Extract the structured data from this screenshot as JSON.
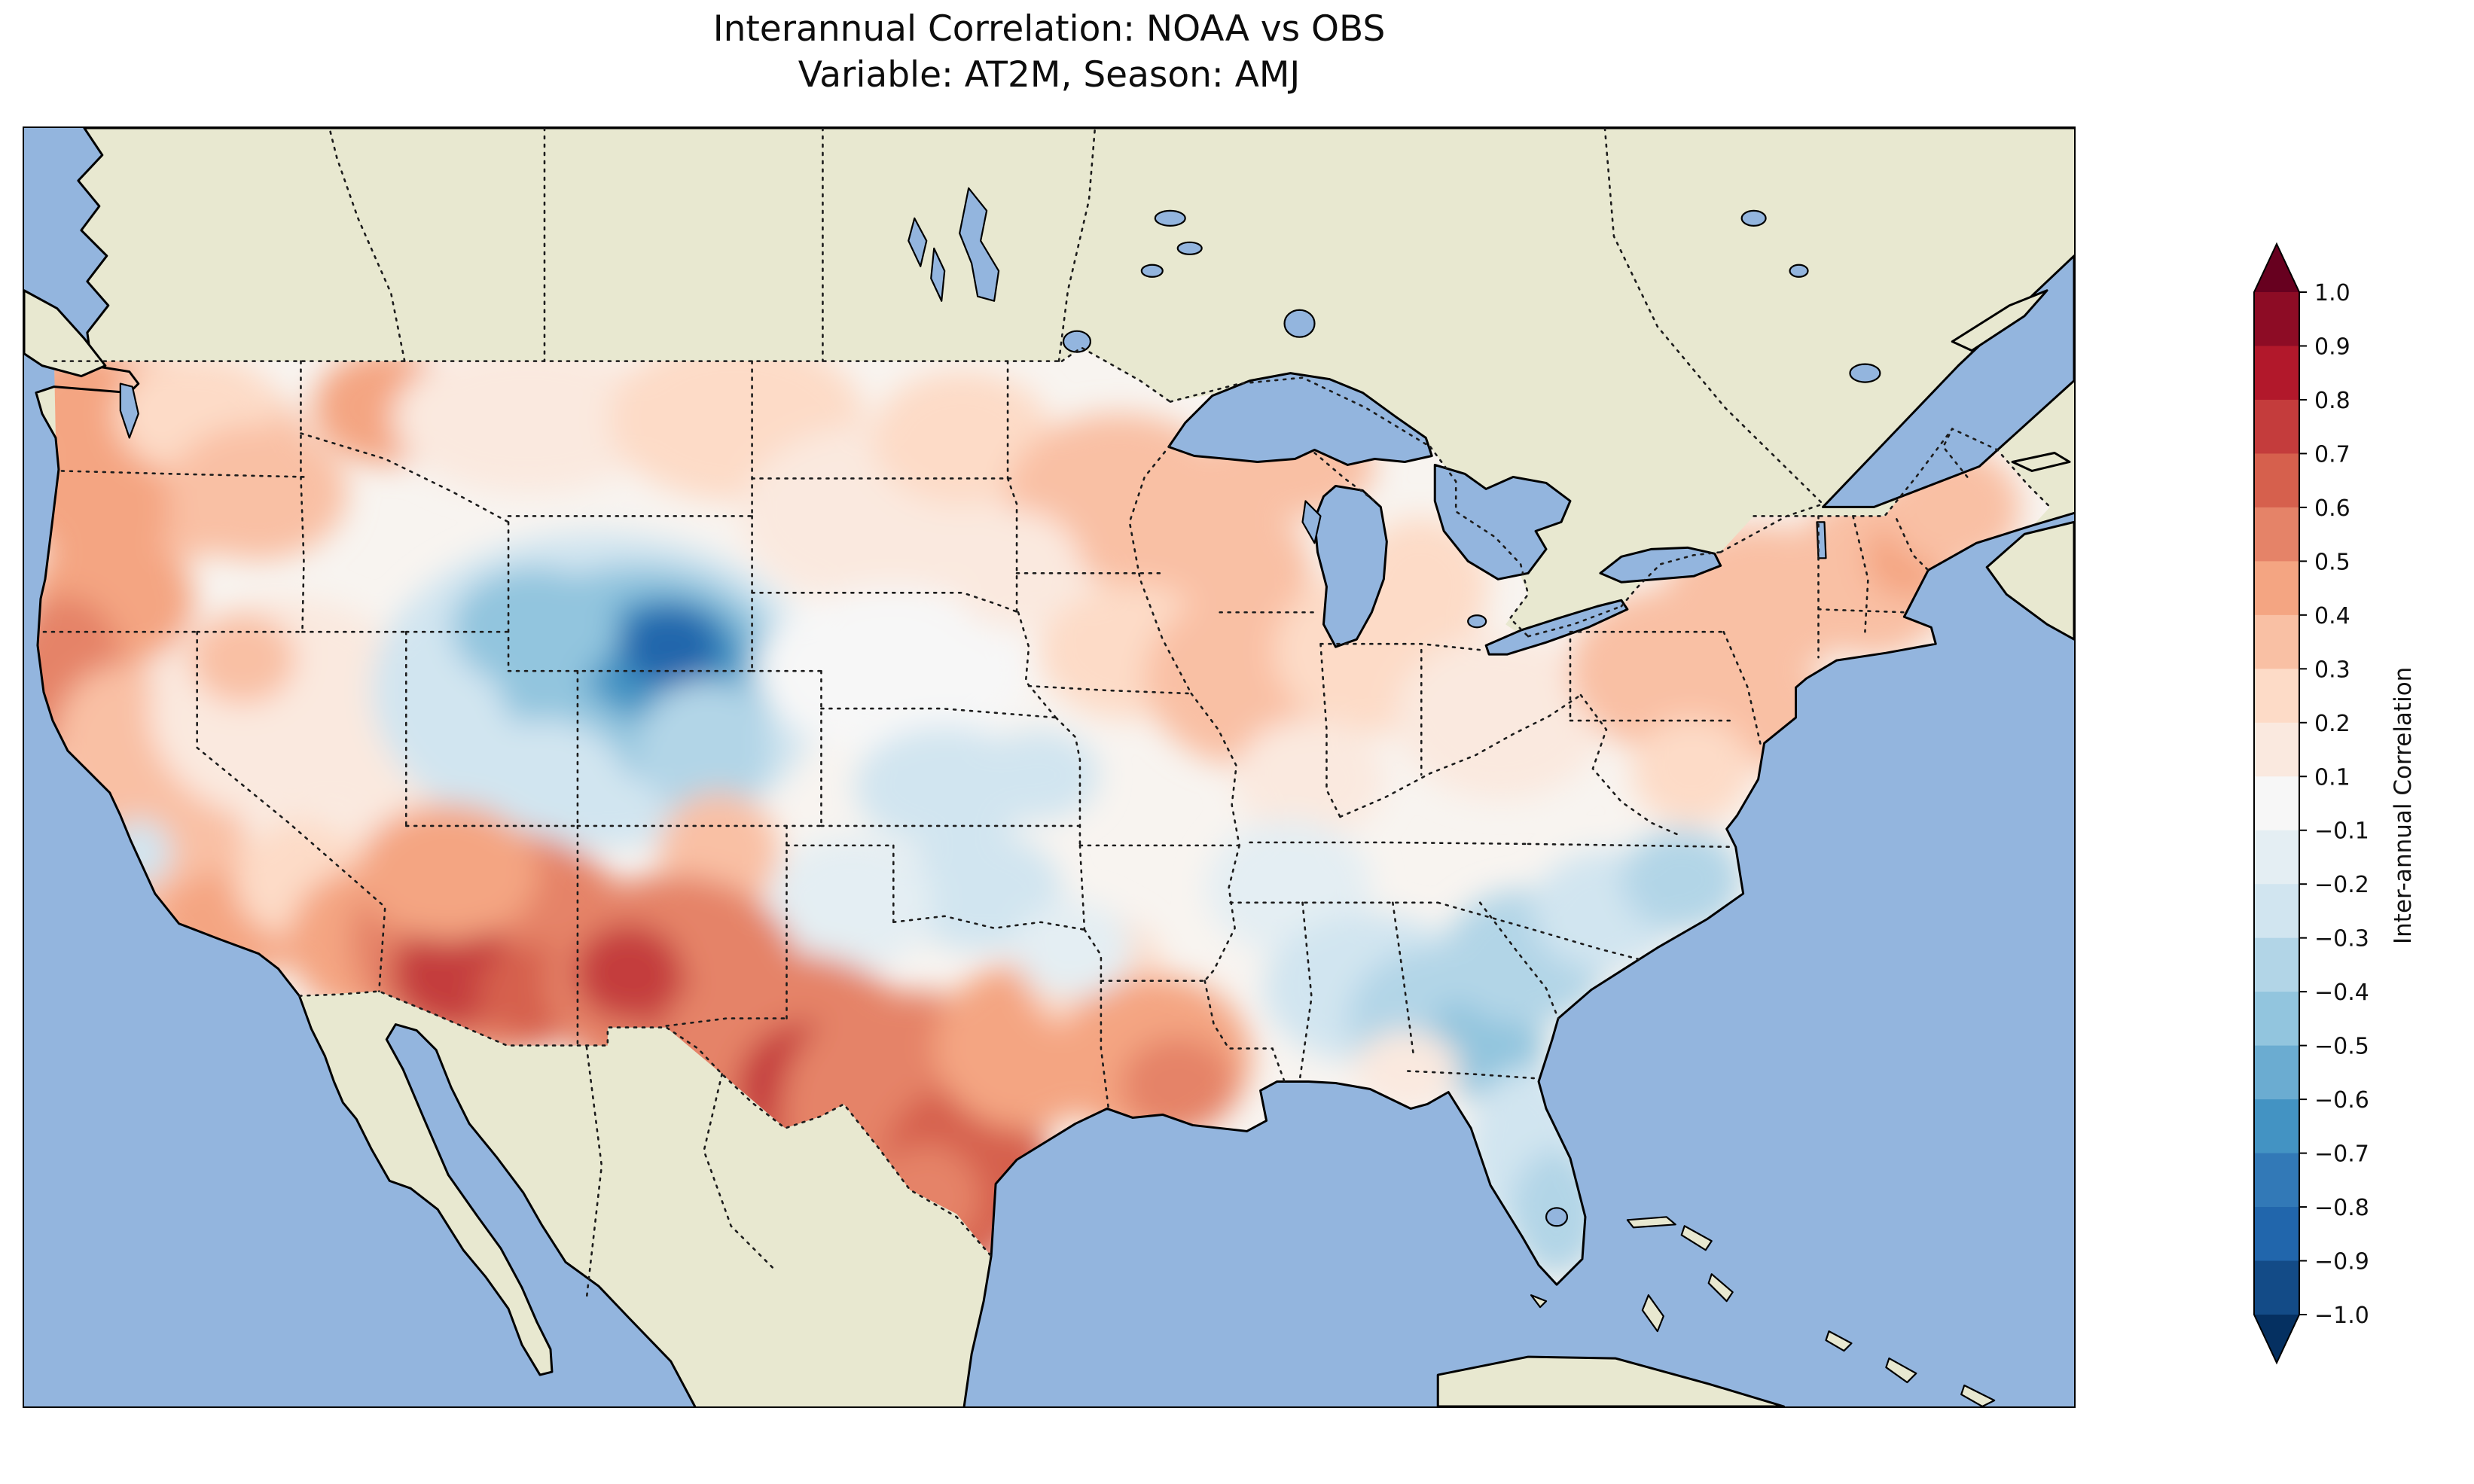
{
  "figure": {
    "title": "Interannual Correlation: NOAA vs OBS",
    "subtitle": "Variable: AT2M, Season: AMJ"
  },
  "colorbar": {
    "label": "Inter-annual Correlation",
    "ticks": [
      "1.0",
      "0.9",
      "0.8",
      "0.7",
      "0.6",
      "0.5",
      "0.4",
      "0.3",
      "0.2",
      "0.1",
      "−0.1",
      "−0.2",
      "−0.3",
      "−0.4",
      "−0.5",
      "−0.6",
      "−0.7",
      "−0.8",
      "−0.9",
      "−1.0"
    ],
    "band_colors": [
      "#8d0c25",
      "#b2182b",
      "#c43c3c",
      "#d6604d",
      "#e58368",
      "#f4a582",
      "#f9c0a4",
      "#fddbc7",
      "#fae9df",
      "#f7f7f7",
      "#e4eef3",
      "#d1e5f0",
      "#b2d5e7",
      "#92c5de",
      "#6bacd1",
      "#4393c3",
      "#3279b7",
      "#2166ac",
      "#134b87"
    ],
    "extend_over_color": "#67001f",
    "extend_under_color": "#053061"
  },
  "map": {
    "extent": {
      "lon": [
        -125,
        -66
      ],
      "lat": [
        22,
        55
      ]
    },
    "colors": {
      "ocean": "#93b5de",
      "land": "#e8e8d0",
      "field_base": "#f8f4f0",
      "coastline": "#000000",
      "borders": "#1c1c1c"
    },
    "field_blobs": [
      [
        -121.5,
        46.5,
        110,
        70,
        0.3
      ],
      [
        -123.3,
        47.8,
        45,
        40,
        0.45
      ],
      [
        -122.8,
        45.4,
        50,
        45,
        0.45
      ],
      [
        -120.0,
        47.6,
        55,
        40,
        0.2
      ],
      [
        -118.3,
        45.6,
        60,
        45,
        0.3
      ],
      [
        -122.5,
        42.8,
        55,
        45,
        0.4
      ],
      [
        -123.8,
        40.8,
        40,
        55,
        0.55
      ],
      [
        -122.2,
        39.0,
        45,
        55,
        0.35
      ],
      [
        -120.8,
        36.8,
        50,
        65,
        0.35
      ],
      [
        -121.7,
        36.3,
        22,
        22,
        -0.2
      ],
      [
        -118.8,
        34.5,
        55,
        35,
        0.4
      ],
      [
        -117.0,
        35.6,
        45,
        40,
        0.25
      ],
      [
        -115.0,
        34.0,
        55,
        50,
        0.5
      ],
      [
        -117.5,
        40.0,
        90,
        75,
        0.1
      ],
      [
        -118.7,
        41.3,
        35,
        30,
        0.35
      ],
      [
        -113.5,
        38.0,
        60,
        55,
        0.15
      ],
      [
        -111.8,
        40.2,
        45,
        45,
        0.2
      ],
      [
        -108.5,
        40.5,
        150,
        105,
        -0.25
      ],
      [
        -107.3,
        41.0,
        95,
        70,
        -0.45
      ],
      [
        -106.6,
        41.3,
        55,
        42,
        -0.65
      ],
      [
        -106.4,
        41.6,
        32,
        26,
        -0.85
      ],
      [
        -110.3,
        42.1,
        55,
        40,
        -0.4
      ],
      [
        -105.4,
        39.0,
        45,
        45,
        -0.3
      ],
      [
        -110.0,
        38.0,
        55,
        45,
        -0.2
      ],
      [
        -114.5,
        47.8,
        50,
        38,
        0.4
      ],
      [
        -110.5,
        47.5,
        90,
        50,
        0.15
      ],
      [
        -104.5,
        47.5,
        85,
        55,
        0.25
      ],
      [
        -100.5,
        45.0,
        90,
        60,
        0.15
      ],
      [
        -98.0,
        47.0,
        60,
        45,
        0.25
      ],
      [
        -100.0,
        41.0,
        90,
        55,
        0.05
      ],
      [
        -98.5,
        38.0,
        60,
        40,
        -0.2
      ],
      [
        -95.8,
        38.3,
        40,
        30,
        -0.2
      ],
      [
        -97.5,
        35.3,
        55,
        40,
        -0.2
      ],
      [
        -101.2,
        35.0,
        55,
        45,
        -0.1
      ],
      [
        -105.0,
        36.3,
        40,
        40,
        0.35
      ],
      [
        -111.5,
        34.0,
        95,
        75,
        0.55
      ],
      [
        -112.6,
        33.2,
        42,
        36,
        0.78
      ],
      [
        -110.0,
        32.7,
        45,
        32,
        0.7
      ],
      [
        -112.8,
        35.8,
        60,
        45,
        0.45
      ],
      [
        -106.3,
        33.0,
        85,
        70,
        0.6
      ],
      [
        -107.6,
        33.2,
        36,
        32,
        0.8
      ],
      [
        -105.2,
        31.6,
        42,
        38,
        0.8
      ],
      [
        -103.0,
        31.0,
        90,
        70,
        0.6
      ],
      [
        -102.3,
        30.2,
        50,
        45,
        0.75
      ],
      [
        -101.5,
        29.3,
        45,
        35,
        0.7
      ],
      [
        -99.5,
        29.8,
        85,
        75,
        0.55
      ],
      [
        -97.9,
        28.2,
        55,
        55,
        0.65
      ],
      [
        -98.2,
        27.0,
        40,
        40,
        0.7
      ],
      [
        -99.0,
        27.4,
        35,
        35,
        0.6
      ],
      [
        -96.2,
        31.3,
        60,
        55,
        0.45
      ],
      [
        -94.2,
        33.2,
        45,
        40,
        0.2
      ],
      [
        -92.5,
        31.0,
        65,
        55,
        0.45
      ],
      [
        -91.8,
        30.3,
        38,
        32,
        0.55
      ],
      [
        -93.5,
        45.5,
        75,
        55,
        0.35
      ],
      [
        -91.0,
        43.5,
        70,
        55,
        0.3
      ],
      [
        -93.2,
        41.5,
        60,
        45,
        0.25
      ],
      [
        -89.5,
        40.8,
        75,
        60,
        0.3
      ],
      [
        -86.0,
        41.5,
        70,
        55,
        0.25
      ],
      [
        -84.8,
        43.2,
        45,
        45,
        0.25
      ],
      [
        -96.5,
        43.6,
        45,
        40,
        0.15
      ],
      [
        -88.5,
        46.3,
        55,
        35,
        0.35
      ],
      [
        -82.5,
        39.8,
        70,
        55,
        0.15
      ],
      [
        -88.0,
        38.2,
        50,
        40,
        0.1
      ],
      [
        -77.5,
        41.0,
        70,
        55,
        0.3
      ],
      [
        -75.0,
        42.8,
        65,
        50,
        0.3
      ],
      [
        -71.8,
        43.5,
        55,
        55,
        0.35
      ],
      [
        -70.8,
        43.9,
        28,
        26,
        0.5
      ],
      [
        -74.5,
        39.8,
        38,
        35,
        0.35
      ],
      [
        -77.0,
        38.4,
        40,
        35,
        0.25
      ],
      [
        -69.5,
        45.2,
        45,
        40,
        0.3
      ],
      [
        -88.6,
        35.4,
        55,
        45,
        -0.1
      ],
      [
        -94.8,
        33.8,
        40,
        32,
        -0.1
      ],
      [
        -86.3,
        32.8,
        70,
        50,
        -0.25
      ],
      [
        -84.3,
        32.0,
        60,
        48,
        -0.3
      ],
      [
        -83.0,
        31.3,
        40,
        34,
        -0.45
      ],
      [
        -81.8,
        33.6,
        55,
        45,
        -0.3
      ],
      [
        -79.5,
        34.8,
        48,
        40,
        -0.25
      ],
      [
        -77.3,
        35.6,
        40,
        34,
        -0.3
      ],
      [
        -81.8,
        28.6,
        38,
        55,
        -0.25
      ],
      [
        -80.9,
        27.0,
        30,
        42,
        -0.35
      ],
      [
        -85.2,
        30.7,
        35,
        26,
        0.15
      ]
    ]
  },
  "chart_data": {
    "type": "heatmap",
    "title": "Interannual Correlation: NOAA vs OBS",
    "subtitle": "Variable: AT2M, Season: AMJ",
    "variable": "AT2M",
    "season": "AMJ",
    "datasets_compared": [
      "NOAA",
      "OBS"
    ],
    "colorbar_label": "Inter-annual Correlation",
    "colormap": "RdBu_r (diverging; red = positive correlation, blue = negative correlation)",
    "value_range": [
      -1.0,
      1.0
    ],
    "contour_levels": [
      -1.0,
      -0.9,
      -0.8,
      -0.7,
      -0.6,
      -0.5,
      -0.4,
      -0.3,
      -0.2,
      -0.1,
      0.1,
      0.2,
      0.3,
      0.4,
      0.5,
      0.6,
      0.7,
      0.8,
      0.9,
      1.0
    ],
    "map_extent": {
      "lon": [
        -125,
        -66
      ],
      "lat": [
        22,
        55
      ],
      "region": "Contiguous United States"
    },
    "regional_correlations": [
      {
        "region": "Pacific Northwest coast (WA/OR)",
        "correlation": 0.45
      },
      {
        "region": "Northern California coast",
        "correlation": 0.55
      },
      {
        "region": "Central Valley California",
        "correlation": 0.35
      },
      {
        "region": "Central California coast (Monterey)",
        "correlation": -0.2
      },
      {
        "region": "Southern California / lower Colorado River",
        "correlation": 0.45
      },
      {
        "region": "Great Basin (Nevada)",
        "correlation": 0.1
      },
      {
        "region": "Utah",
        "correlation": 0.15
      },
      {
        "region": "Wyoming–Colorado Rockies core",
        "correlation": -0.8
      },
      {
        "region": "Wyoming / NW Colorado surrounding area",
        "correlation": -0.4
      },
      {
        "region": "Arizona core",
        "correlation": 0.8
      },
      {
        "region": "New Mexico core",
        "correlation": 0.8
      },
      {
        "region": "West Texas / Rio Grande",
        "correlation": 0.7
      },
      {
        "region": "Central and South Texas",
        "correlation": 0.6
      },
      {
        "region": "Montana / northern High Plains",
        "correlation": 0.2
      },
      {
        "region": "Dakotas",
        "correlation": 0.2
      },
      {
        "region": "Nebraska",
        "correlation": 0.05
      },
      {
        "region": "Kansas / Oklahoma",
        "correlation": -0.2
      },
      {
        "region": "Upper Midwest (MN/WI/IA)",
        "correlation": 0.3
      },
      {
        "region": "Illinois / Indiana / lower Michigan",
        "correlation": 0.3
      },
      {
        "region": "Louisiana / Mississippi",
        "correlation": 0.45
      },
      {
        "region": "Ohio Valley",
        "correlation": 0.15
      },
      {
        "region": "Alabama / Georgia",
        "correlation": -0.3
      },
      {
        "region": "Carolinas",
        "correlation": -0.3
      },
      {
        "region": "Florida peninsula",
        "correlation": -0.3
      },
      {
        "region": "Mid-Atlantic / Pennsylvania / New York",
        "correlation": 0.3
      },
      {
        "region": "New England",
        "correlation": 0.35
      }
    ]
  }
}
